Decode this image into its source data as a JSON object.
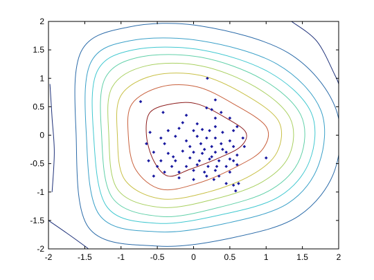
{
  "chart_data": {
    "type": "scatter",
    "title": "",
    "xlabel": "",
    "ylabel": "",
    "xlim": [
      -2,
      2
    ],
    "ylim": [
      -2,
      2
    ],
    "grid": false,
    "legend": "none",
    "x_ticks": [
      "-2",
      "-1.5",
      "-1",
      "-0.5",
      "0",
      "0.5",
      "1",
      "1.5",
      "2"
    ],
    "y_ticks": [
      "2",
      "1.5",
      "1",
      "0.5",
      "0",
      "-0.5",
      "-1",
      "-1.5",
      "-2"
    ],
    "x_tick_values": [
      -2,
      -1.5,
      -1,
      -0.5,
      0,
      0.5,
      1,
      1.5,
      2
    ],
    "y_tick_values": [
      2,
      1.5,
      1,
      0.5,
      0,
      -0.5,
      -1,
      -1.5,
      -2
    ],
    "contour_colors": [
      "#8b1a1a",
      "#c8603c",
      "#c8c046",
      "#a8d060",
      "#60d0a8",
      "#40c8d0",
      "#3aa0c8",
      "#2a6aa8",
      "#1c2f78"
    ],
    "contour_levels": [
      {
        "name": "level-1",
        "color": "#8b1a1a",
        "points": [
          [
            -0.6,
            0.4
          ],
          [
            -0.3,
            0.55
          ],
          [
            0.05,
            0.55
          ],
          [
            0.45,
            0.3
          ],
          [
            0.72,
            0.05
          ],
          [
            0.65,
            -0.2
          ],
          [
            0.35,
            -0.4
          ],
          [
            -0.05,
            -0.6
          ],
          [
            -0.35,
            -0.72
          ],
          [
            -0.55,
            -0.45
          ],
          [
            -0.65,
            0.0
          ]
        ]
      },
      {
        "name": "level-2",
        "color": "#c8603c",
        "points": [
          [
            -0.85,
            0.55
          ],
          [
            -0.45,
            0.85
          ],
          [
            0.05,
            0.85
          ],
          [
            0.55,
            0.55
          ],
          [
            1.0,
            0.15
          ],
          [
            0.95,
            -0.25
          ],
          [
            0.6,
            -0.55
          ],
          [
            0.05,
            -0.85
          ],
          [
            -0.45,
            -0.95
          ],
          [
            -0.8,
            -0.6
          ],
          [
            -0.9,
            0.0
          ]
        ]
      },
      {
        "name": "level-3",
        "color": "#c8c046",
        "points": [
          [
            -1.0,
            0.7
          ],
          [
            -0.55,
            1.05
          ],
          [
            0.1,
            1.05
          ],
          [
            0.7,
            0.72
          ],
          [
            1.17,
            0.25
          ],
          [
            1.15,
            -0.3
          ],
          [
            0.8,
            -0.7
          ],
          [
            0.2,
            -1.0
          ],
          [
            -0.45,
            -1.12
          ],
          [
            -0.95,
            -0.78
          ],
          [
            -1.05,
            0.0
          ]
        ]
      },
      {
        "name": "level-4",
        "color": "#a8d060",
        "points": [
          [
            -1.12,
            0.85
          ],
          [
            -0.65,
            1.22
          ],
          [
            0.1,
            1.22
          ],
          [
            0.85,
            0.85
          ],
          [
            1.33,
            0.3
          ],
          [
            1.32,
            -0.35
          ],
          [
            0.95,
            -0.82
          ],
          [
            0.3,
            -1.12
          ],
          [
            -0.45,
            -1.27
          ],
          [
            -1.05,
            -0.95
          ],
          [
            -1.17,
            0.05
          ]
        ]
      },
      {
        "name": "level-5",
        "color": "#60d0a8",
        "points": [
          [
            -1.22,
            1.0
          ],
          [
            -0.75,
            1.37
          ],
          [
            0.1,
            1.37
          ],
          [
            0.95,
            0.98
          ],
          [
            1.48,
            0.35
          ],
          [
            1.47,
            -0.4
          ],
          [
            1.08,
            -0.95
          ],
          [
            0.35,
            -1.27
          ],
          [
            -0.45,
            -1.43
          ],
          [
            -1.12,
            -1.1
          ],
          [
            -1.27,
            0.05
          ]
        ]
      },
      {
        "name": "level-6",
        "color": "#40c8d0",
        "points": [
          [
            -1.33,
            1.12
          ],
          [
            -0.83,
            1.5
          ],
          [
            0.1,
            1.5
          ],
          [
            1.05,
            1.1
          ],
          [
            1.62,
            0.4
          ],
          [
            1.6,
            -0.45
          ],
          [
            1.18,
            -1.08
          ],
          [
            0.38,
            -1.4
          ],
          [
            -0.5,
            -1.55
          ],
          [
            -1.2,
            -1.25
          ],
          [
            -1.38,
            0.05
          ]
        ]
      },
      {
        "name": "level-7",
        "color": "#3aa0c8",
        "points": [
          [
            -1.42,
            1.27
          ],
          [
            -0.88,
            1.66
          ],
          [
            0.1,
            1.66
          ],
          [
            1.15,
            1.25
          ],
          [
            1.75,
            0.45
          ],
          [
            1.73,
            -0.5
          ],
          [
            1.3,
            -1.2
          ],
          [
            0.45,
            -1.55
          ],
          [
            -0.5,
            -1.7
          ],
          [
            -1.3,
            -1.4
          ],
          [
            -1.48,
            0.05
          ]
        ]
      },
      {
        "name": "level-8",
        "color": "#2a6aa8",
        "points": [
          [
            -1.55,
            1.47
          ],
          [
            -0.9,
            1.9
          ],
          [
            0.1,
            1.92
          ],
          [
            1.3,
            1.45
          ],
          [
            1.95,
            0.5
          ],
          [
            1.95,
            -0.6
          ],
          [
            1.45,
            -1.42
          ],
          [
            0.55,
            -1.8
          ],
          [
            -0.5,
            -1.95
          ],
          [
            -1.45,
            -1.62
          ],
          [
            -1.62,
            0.05
          ]
        ]
      }
    ],
    "outer_contour_segments": [
      {
        "name": "outer-top-right",
        "color": "#1c2f78",
        "points": [
          [
            1.35,
            2.0
          ],
          [
            1.7,
            1.65
          ],
          [
            1.95,
            1.05
          ],
          [
            2.0,
            0.9
          ]
        ]
      },
      {
        "name": "outer-bottom-left",
        "color": "#1c2f78",
        "points": [
          [
            -2.0,
            -1.5
          ],
          [
            -1.75,
            -1.72
          ],
          [
            -1.5,
            -1.95
          ],
          [
            -1.45,
            -2.0
          ]
        ]
      },
      {
        "name": "outer-left",
        "color": "#1c2f78",
        "points": [
          [
            -1.98,
            0.9
          ],
          [
            -1.95,
            0.3
          ],
          [
            -1.92,
            -0.3
          ],
          [
            -1.95,
            -1.0
          ]
        ]
      }
    ],
    "marker_color": "#1a1aa0",
    "points": [
      {
        "x": -0.73,
        "y": 0.59
      },
      {
        "x": 0.19,
        "y": 1.0
      },
      {
        "x": 0.3,
        "y": 0.62
      },
      {
        "x": 0.25,
        "y": 0.45
      },
      {
        "x": 0.38,
        "y": 0.4
      },
      {
        "x": 0.18,
        "y": 0.48
      },
      {
        "x": -0.42,
        "y": 0.4
      },
      {
        "x": -0.1,
        "y": 0.35
      },
      {
        "x": 0.3,
        "y": 0.3
      },
      {
        "x": 0.5,
        "y": 0.3
      },
      {
        "x": -0.15,
        "y": 0.22
      },
      {
        "x": 0.05,
        "y": 0.2
      },
      {
        "x": 0.3,
        "y": 0.15
      },
      {
        "x": 0.6,
        "y": 0.15
      },
      {
        "x": -0.6,
        "y": 0.05
      },
      {
        "x": -0.35,
        "y": 0.08
      },
      {
        "x": -0.2,
        "y": 0.12
      },
      {
        "x": 0.0,
        "y": 0.08
      },
      {
        "x": 0.12,
        "y": 0.1
      },
      {
        "x": 0.22,
        "y": 0.08
      },
      {
        "x": 0.4,
        "y": 0.05
      },
      {
        "x": 0.55,
        "y": 0.08
      },
      {
        "x": -0.45,
        "y": -0.05
      },
      {
        "x": -0.25,
        "y": -0.02
      },
      {
        "x": 0.05,
        "y": -0.02
      },
      {
        "x": 0.18,
        "y": -0.05
      },
      {
        "x": 0.3,
        "y": -0.05
      },
      {
        "x": 0.5,
        "y": -0.1
      },
      {
        "x": 0.68,
        "y": -0.05
      },
      {
        "x": -0.65,
        "y": -0.15
      },
      {
        "x": -0.4,
        "y": -0.15
      },
      {
        "x": -0.1,
        "y": -0.1
      },
      {
        "x": 0.1,
        "y": -0.15
      },
      {
        "x": 0.25,
        "y": -0.2
      },
      {
        "x": 0.38,
        "y": -0.15
      },
      {
        "x": 0.55,
        "y": -0.2
      },
      {
        "x": 0.7,
        "y": -0.2
      },
      {
        "x": -0.55,
        "y": -0.3
      },
      {
        "x": -0.35,
        "y": -0.32
      },
      {
        "x": -0.15,
        "y": -0.28
      },
      {
        "x": 0.0,
        "y": -0.3
      },
      {
        "x": 0.12,
        "y": -0.32
      },
      {
        "x": 0.3,
        "y": -0.3
      },
      {
        "x": 0.45,
        "y": -0.3
      },
      {
        "x": 0.6,
        "y": -0.35
      },
      {
        "x": 1.0,
        "y": -0.4
      },
      {
        "x": -0.62,
        "y": -0.45
      },
      {
        "x": -0.45,
        "y": -0.45
      },
      {
        "x": -0.25,
        "y": -0.45
      },
      {
        "x": -0.05,
        "y": -0.4
      },
      {
        "x": 0.08,
        "y": -0.45
      },
      {
        "x": 0.22,
        "y": -0.42
      },
      {
        "x": 0.35,
        "y": -0.45
      },
      {
        "x": 0.5,
        "y": -0.42
      },
      {
        "x": -0.5,
        "y": -0.55
      },
      {
        "x": -0.3,
        "y": -0.55
      },
      {
        "x": -0.1,
        "y": -0.55
      },
      {
        "x": 0.05,
        "y": -0.52
      },
      {
        "x": 0.2,
        "y": -0.55
      },
      {
        "x": 0.32,
        "y": -0.55
      },
      {
        "x": 0.45,
        "y": -0.55
      },
      {
        "x": 0.6,
        "y": -0.52
      },
      {
        "x": -0.4,
        "y": -0.65
      },
      {
        "x": -0.2,
        "y": -0.65
      },
      {
        "x": 0.0,
        "y": -0.62
      },
      {
        "x": 0.15,
        "y": -0.65
      },
      {
        "x": 0.3,
        "y": -0.62
      },
      {
        "x": 0.5,
        "y": -0.65
      },
      {
        "x": -0.55,
        "y": -0.72
      },
      {
        "x": -0.2,
        "y": -0.75
      },
      {
        "x": 0.0,
        "y": -0.78
      },
      {
        "x": 0.18,
        "y": -0.72
      },
      {
        "x": 0.28,
        "y": -0.78
      },
      {
        "x": 0.45,
        "y": -0.85
      },
      {
        "x": 0.55,
        "y": -0.88
      },
      {
        "x": 0.62,
        "y": -0.85
      },
      {
        "x": 0.58,
        "y": -0.98
      },
      {
        "x": 0.25,
        "y": -0.38
      },
      {
        "x": -0.05,
        "y": -0.2
      },
      {
        "x": 0.15,
        "y": -0.25
      },
      {
        "x": 0.4,
        "y": -0.25
      },
      {
        "x": -0.28,
        "y": -0.38
      },
      {
        "x": 0.55,
        "y": -0.45
      },
      {
        "x": 0.35,
        "y": -0.72
      }
    ]
  }
}
